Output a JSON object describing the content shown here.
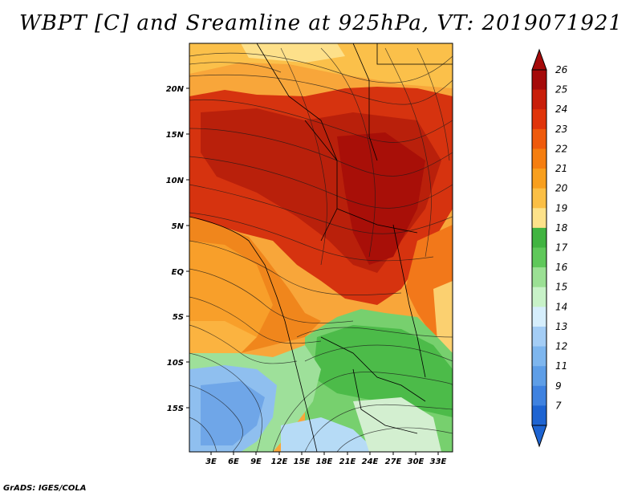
{
  "title": "WBPT [C] and Sreamline at 925hPa, VT: 2019071921",
  "footer": "GrADS: IGES/COLA",
  "map": {
    "lat_labels": [
      "20N",
      "15N",
      "10N",
      "5N",
      "EQ",
      "5S",
      "10S",
      "15S"
    ],
    "lon_labels": [
      "3E",
      "6E",
      "9E",
      "12E",
      "15E",
      "18E",
      "21E",
      "24E",
      "27E",
      "30E",
      "33E"
    ]
  },
  "colorbar": {
    "levels": [
      "26",
      "25",
      "24",
      "23",
      "22",
      "21",
      "20",
      "19",
      "18",
      "17",
      "16",
      "15",
      "14",
      "13",
      "12",
      "11",
      "9",
      "7"
    ],
    "colors": [
      "#a50a0a",
      "#c81e0a",
      "#e0340a",
      "#ef5a0c",
      "#f57e10",
      "#f89f1e",
      "#fbbf45",
      "#fde28a",
      "#41b441",
      "#5fc85a",
      "#9be094",
      "#c8f2c8",
      "#d6eefc",
      "#a4cdf5",
      "#7eb6ee",
      "#5e9ee7",
      "#3f82e0",
      "#1e64d2"
    ]
  }
}
